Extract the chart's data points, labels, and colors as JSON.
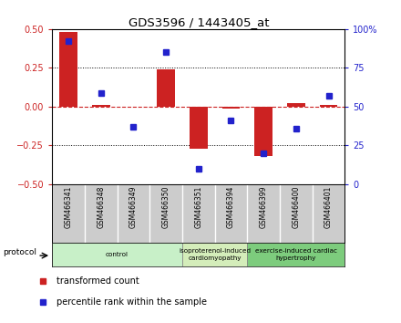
{
  "title": "GDS3596 / 1443405_at",
  "samples": [
    "GSM466341",
    "GSM466348",
    "GSM466349",
    "GSM466350",
    "GSM466351",
    "GSM466394",
    "GSM466399",
    "GSM466400",
    "GSM466401"
  ],
  "transformed_count": [
    0.48,
    0.01,
    0.0,
    0.24,
    -0.27,
    -0.01,
    -0.32,
    0.02,
    0.01
  ],
  "percentile_rank": [
    92,
    59,
    37,
    85,
    10,
    41,
    20,
    36,
    57
  ],
  "groups": [
    {
      "label": "control",
      "indices": [
        0,
        1,
        2,
        3
      ],
      "color": "#c8f0c8"
    },
    {
      "label": "isoproterenol-induced\ncardiomyopathy",
      "indices": [
        4,
        5
      ],
      "color": "#d4edba"
    },
    {
      "label": "exercise-induced cardiac\nhypertrophy",
      "indices": [
        6,
        7,
        8
      ],
      "color": "#7dcc7d"
    }
  ],
  "ylim_left": [
    -0.5,
    0.5
  ],
  "ylim_right": [
    0,
    100
  ],
  "yticks_left": [
    -0.5,
    -0.25,
    0,
    0.25,
    0.5
  ],
  "yticks_right": [
    0,
    25,
    50,
    75,
    100
  ],
  "bar_color": "#cc2222",
  "dot_color": "#2222cc",
  "zero_line_color": "#cc2222",
  "grid_color": "#000000",
  "bg_color": "#ffffff",
  "legend_items": [
    "transformed count",
    "percentile rank within the sample"
  ],
  "legend_colors": [
    "#cc2222",
    "#2222cc"
  ]
}
